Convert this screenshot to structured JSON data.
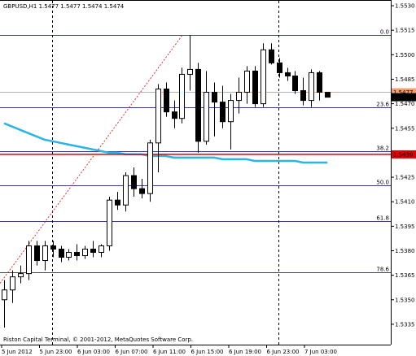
{
  "window": {
    "header": "GBPUSD,H1  1.5477 1.5477 1.5474 1.5474",
    "copyright": "Riston Capital Terminal, © 2001-2012, MetaQuotes Software Corp."
  },
  "colors": {
    "background": "#ffffff",
    "bull_body": "#ffffff",
    "bear_body": "#000000",
    "candle_outline": "#000000",
    "fib_line": "#3b3b8f",
    "moving_average": "#2ab4e8",
    "orange_line": "#f0a070",
    "red_line": "#e00000",
    "trend_line": "#e03030",
    "axis_text": "#000000"
  },
  "price_labels": {
    "current": "1.5474",
    "orange": "1.5477",
    "red": "1.5439"
  },
  "chart_data": {
    "type": "candlestick",
    "symbol": "GBPUSD",
    "timeframe": "H1",
    "ylim": [
      1.5328,
      1.5532
    ],
    "y_ticks": [
      "1.5530",
      "1.5515",
      "1.5500",
      "1.5485",
      "1.5470",
      "1.5455",
      "1.5440",
      "1.5425",
      "1.5410",
      "1.5395",
      "1.5380",
      "1.5365",
      "1.5350",
      "1.5335"
    ],
    "x_ticks": [
      "5 Jun 2012",
      "5 Jun 23:00",
      "6 Jun 03:00",
      "6 Jun 07:00",
      "6 Jun 11:00",
      "6 Jun 15:00",
      "6 Jun 19:00",
      "6 Jun 23:00",
      "7 Jun 03:00"
    ],
    "candles": [
      {
        "o": 1.535,
        "h": 1.5362,
        "l": 1.5333,
        "c": 1.5356
      },
      {
        "o": 1.5356,
        "h": 1.5368,
        "l": 1.5348,
        "c": 1.5364
      },
      {
        "o": 1.5364,
        "h": 1.5371,
        "l": 1.536,
        "c": 1.5366
      },
      {
        "o": 1.5366,
        "h": 1.5386,
        "l": 1.5362,
        "c": 1.5383
      },
      {
        "o": 1.5383,
        "h": 1.5386,
        "l": 1.5371,
        "c": 1.5374
      },
      {
        "o": 1.5374,
        "h": 1.5386,
        "l": 1.5368,
        "c": 1.5383
      },
      {
        "o": 1.5383,
        "h": 1.5386,
        "l": 1.5376,
        "c": 1.5381
      },
      {
        "o": 1.5381,
        "h": 1.5383,
        "l": 1.5373,
        "c": 1.5376
      },
      {
        "o": 1.5376,
        "h": 1.5381,
        "l": 1.5374,
        "c": 1.5379
      },
      {
        "o": 1.5379,
        "h": 1.5384,
        "l": 1.5374,
        "c": 1.5377
      },
      {
        "o": 1.5377,
        "h": 1.5383,
        "l": 1.5375,
        "c": 1.5381
      },
      {
        "o": 1.5381,
        "h": 1.5386,
        "l": 1.5376,
        "c": 1.5379
      },
      {
        "o": 1.5379,
        "h": 1.5384,
        "l": 1.5376,
        "c": 1.5383
      },
      {
        "o": 1.5383,
        "h": 1.5413,
        "l": 1.538,
        "c": 1.5411
      },
      {
        "o": 1.5411,
        "h": 1.5416,
        "l": 1.5405,
        "c": 1.5408
      },
      {
        "o": 1.5408,
        "h": 1.5428,
        "l": 1.5404,
        "c": 1.5426
      },
      {
        "o": 1.5426,
        "h": 1.5431,
        "l": 1.5413,
        "c": 1.5418
      },
      {
        "o": 1.5418,
        "h": 1.5424,
        "l": 1.5412,
        "c": 1.5415
      },
      {
        "o": 1.5415,
        "h": 1.5448,
        "l": 1.541,
        "c": 1.5446
      },
      {
        "o": 1.5446,
        "h": 1.5482,
        "l": 1.5428,
        "c": 1.5479
      },
      {
        "o": 1.5479,
        "h": 1.5483,
        "l": 1.5462,
        "c": 1.5465
      },
      {
        "o": 1.5465,
        "h": 1.5472,
        "l": 1.5455,
        "c": 1.5461
      },
      {
        "o": 1.5461,
        "h": 1.5492,
        "l": 1.5458,
        "c": 1.5488
      },
      {
        "o": 1.5488,
        "h": 1.5512,
        "l": 1.5478,
        "c": 1.5491
      },
      {
        "o": 1.5491,
        "h": 1.5495,
        "l": 1.544,
        "c": 1.5447
      },
      {
        "o": 1.5447,
        "h": 1.549,
        "l": 1.5445,
        "c": 1.5477
      },
      {
        "o": 1.5477,
        "h": 1.5483,
        "l": 1.545,
        "c": 1.5471
      },
      {
        "o": 1.5471,
        "h": 1.5481,
        "l": 1.5455,
        "c": 1.5459
      },
      {
        "o": 1.5459,
        "h": 1.5476,
        "l": 1.5442,
        "c": 1.5472
      },
      {
        "o": 1.5472,
        "h": 1.5486,
        "l": 1.5464,
        "c": 1.5477
      },
      {
        "o": 1.5477,
        "h": 1.5493,
        "l": 1.547,
        "c": 1.549
      },
      {
        "o": 1.549,
        "h": 1.5493,
        "l": 1.5468,
        "c": 1.547
      },
      {
        "o": 1.547,
        "h": 1.5507,
        "l": 1.5468,
        "c": 1.5503
      },
      {
        "o": 1.5503,
        "h": 1.5507,
        "l": 1.5494,
        "c": 1.5495
      },
      {
        "o": 1.5495,
        "h": 1.5498,
        "l": 1.5486,
        "c": 1.5489
      },
      {
        "o": 1.5489,
        "h": 1.5492,
        "l": 1.5484,
        "c": 1.5487
      },
      {
        "o": 1.5487,
        "h": 1.549,
        "l": 1.5476,
        "c": 1.5478
      },
      {
        "o": 1.5478,
        "h": 1.5486,
        "l": 1.5469,
        "c": 1.5472
      },
      {
        "o": 1.5472,
        "h": 1.5491,
        "l": 1.5468,
        "c": 1.5489
      },
      {
        "o": 1.5489,
        "h": 1.549,
        "l": 1.5472,
        "c": 1.5477
      },
      {
        "o": 1.5477,
        "h": 1.5477,
        "l": 1.5474,
        "c": 1.5474
      }
    ],
    "moving_average": [
      1.5458,
      1.5456,
      1.5454,
      1.5452,
      1.545,
      1.5448,
      1.5447,
      1.5446,
      1.5445,
      1.5444,
      1.5443,
      1.5442,
      1.5441,
      1.544,
      1.544,
      1.5439,
      1.5439,
      1.5439,
      1.5438,
      1.5438,
      1.5438,
      1.5437,
      1.5437,
      1.5437,
      1.5437,
      1.5437,
      1.5437,
      1.5436,
      1.5436,
      1.5436,
      1.5436,
      1.5435,
      1.5435,
      1.5435,
      1.5435,
      1.5435,
      1.5435,
      1.5434,
      1.5434,
      1.5434,
      1.5434
    ],
    "fib_levels": [
      {
        "label": "0.0",
        "price": 1.5512
      },
      {
        "label": "23.6",
        "price": 1.5468
      },
      {
        "label": "38.2",
        "price": 1.5441
      },
      {
        "label": "50.0",
        "price": 1.542
      },
      {
        "label": "61.8",
        "price": 1.5398
      },
      {
        "label": "78.6",
        "price": 1.5367
      }
    ],
    "trend_line": {
      "from_price": 1.5375,
      "to_price": 1.5512
    }
  }
}
